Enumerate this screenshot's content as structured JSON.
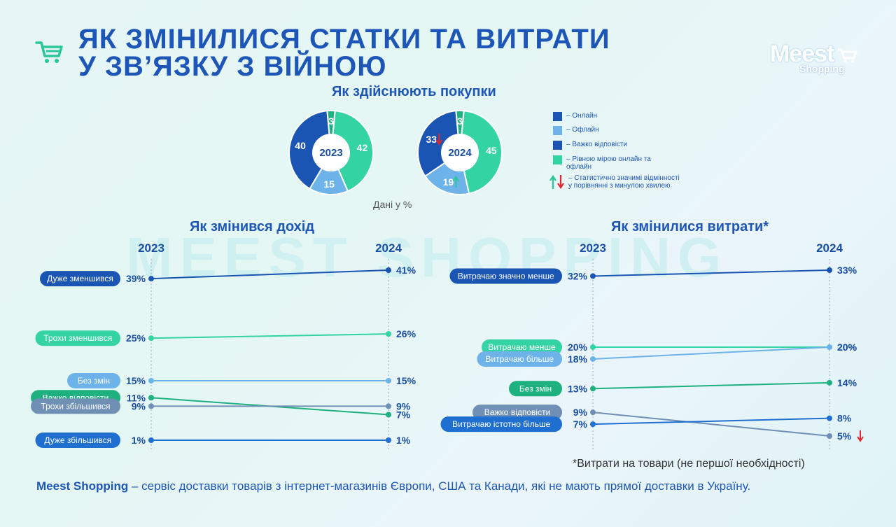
{
  "header": {
    "title_line1": "ЯК ЗМІНИЛИСЯ СТАТКИ ТА ВИТРАТИ",
    "title_line2": "У ЗВ’ЯЗКУ З ВІЙНОЮ",
    "logo_main": "Meest",
    "logo_sub": "Shopping",
    "icon": "shopping-cart-icon"
  },
  "watermark": "MEEST SHOPPING",
  "colors": {
    "dark_blue": "#1a55b3",
    "light_blue": "#6eb2ea",
    "teal": "#33d3a3",
    "green": "#1eb07e",
    "slate": "#6f8fb5",
    "bright_blue": "#1f6fd1",
    "red": "#e0262f"
  },
  "purchase_section": {
    "title": "Як здійснюють покупки",
    "units_note": "Дані у %",
    "legend": [
      {
        "label": "– Онлайн",
        "color": "#1a55b3"
      },
      {
        "label": "– Офлайн",
        "color": "#6eb2ea"
      },
      {
        "label": "– Важко відповісти",
        "color": "#1a55b3"
      },
      {
        "label": "– Рівною мірою онлайн та офлайн",
        "color": "#33d3a3"
      },
      {
        "label": "– Статистично значимі відмінності у порівнянні з минулою хвилею",
        "icon": "up-down-arrows-icon"
      }
    ]
  },
  "chart_data": [
    {
      "type": "pie",
      "title": "Як здійснюють покупки",
      "center_label": "2023",
      "slices": [
        {
          "label": "Рівною мірою онлайн та офлайн",
          "value": 42,
          "color": "#33d3a3"
        },
        {
          "label": "Офлайн",
          "value": 15,
          "color": "#6eb2ea"
        },
        {
          "label": "Онлайн",
          "value": 40,
          "color": "#1a55b3"
        },
        {
          "label": "Важко відповісти",
          "value": 3,
          "color": "#1eb07e"
        }
      ]
    },
    {
      "type": "pie",
      "center_label": "2024",
      "slices": [
        {
          "label": "Рівною мірою онлайн та офлайн",
          "value": 45,
          "color": "#33d3a3"
        },
        {
          "label": "Офлайн",
          "value": 19,
          "color": "#6eb2ea",
          "change": "up"
        },
        {
          "label": "Онлайн",
          "value": 33,
          "color": "#1a55b3",
          "change": "down"
        },
        {
          "label": "Важко відповісти",
          "value": 3,
          "color": "#1eb07e"
        }
      ]
    },
    {
      "type": "line",
      "title": "Як змінився дохід",
      "x": [
        "2023",
        "2024"
      ],
      "series": [
        {
          "name": "Дуже зменшився",
          "values": [
            39,
            41
          ],
          "color": "#1a55b3"
        },
        {
          "name": "Трохи зменшився",
          "values": [
            25,
            26
          ],
          "color": "#33d3a3"
        },
        {
          "name": "Без змін",
          "values": [
            15,
            15
          ],
          "color": "#6eb2ea"
        },
        {
          "name": "Важко відповісти",
          "values": [
            11,
            7
          ],
          "color": "#1eb07e"
        },
        {
          "name": "Трохи збільшився",
          "values": [
            9,
            9
          ],
          "color": "#6f8fb5"
        },
        {
          "name": "Дуже збільшився",
          "values": [
            1,
            1
          ],
          "color": "#1f6fd1"
        }
      ]
    },
    {
      "type": "line",
      "title": "Як змінилися витрати*",
      "x": [
        "2023",
        "2024"
      ],
      "series": [
        {
          "name": "Витрачаю значно менше",
          "values": [
            32,
            33
          ],
          "color": "#1a55b3"
        },
        {
          "name": "Витрачаю менше",
          "values": [
            20,
            20
          ],
          "color": "#33d3a3"
        },
        {
          "name": "Витрачаю більше",
          "values": [
            18,
            20
          ],
          "color": "#6eb2ea"
        },
        {
          "name": "Без змін",
          "values": [
            13,
            14
          ],
          "color": "#1eb07e"
        },
        {
          "name": "Важко відповісти",
          "values": [
            9,
            5
          ],
          "color": "#6f8fb5",
          "change_2024": "down"
        },
        {
          "name": "Витрачаю істотно більше",
          "values": [
            7,
            8
          ],
          "color": "#1f6fd1"
        }
      ]
    }
  ],
  "footnote": "*Витрати на товари (не першої необхідності)",
  "footer": {
    "brand": "Meest Shopping",
    "text": " – сервіс доставки товарів з інтернет-магазинів Європи, США та Канади, які не мають прямої доставки в Україну."
  }
}
